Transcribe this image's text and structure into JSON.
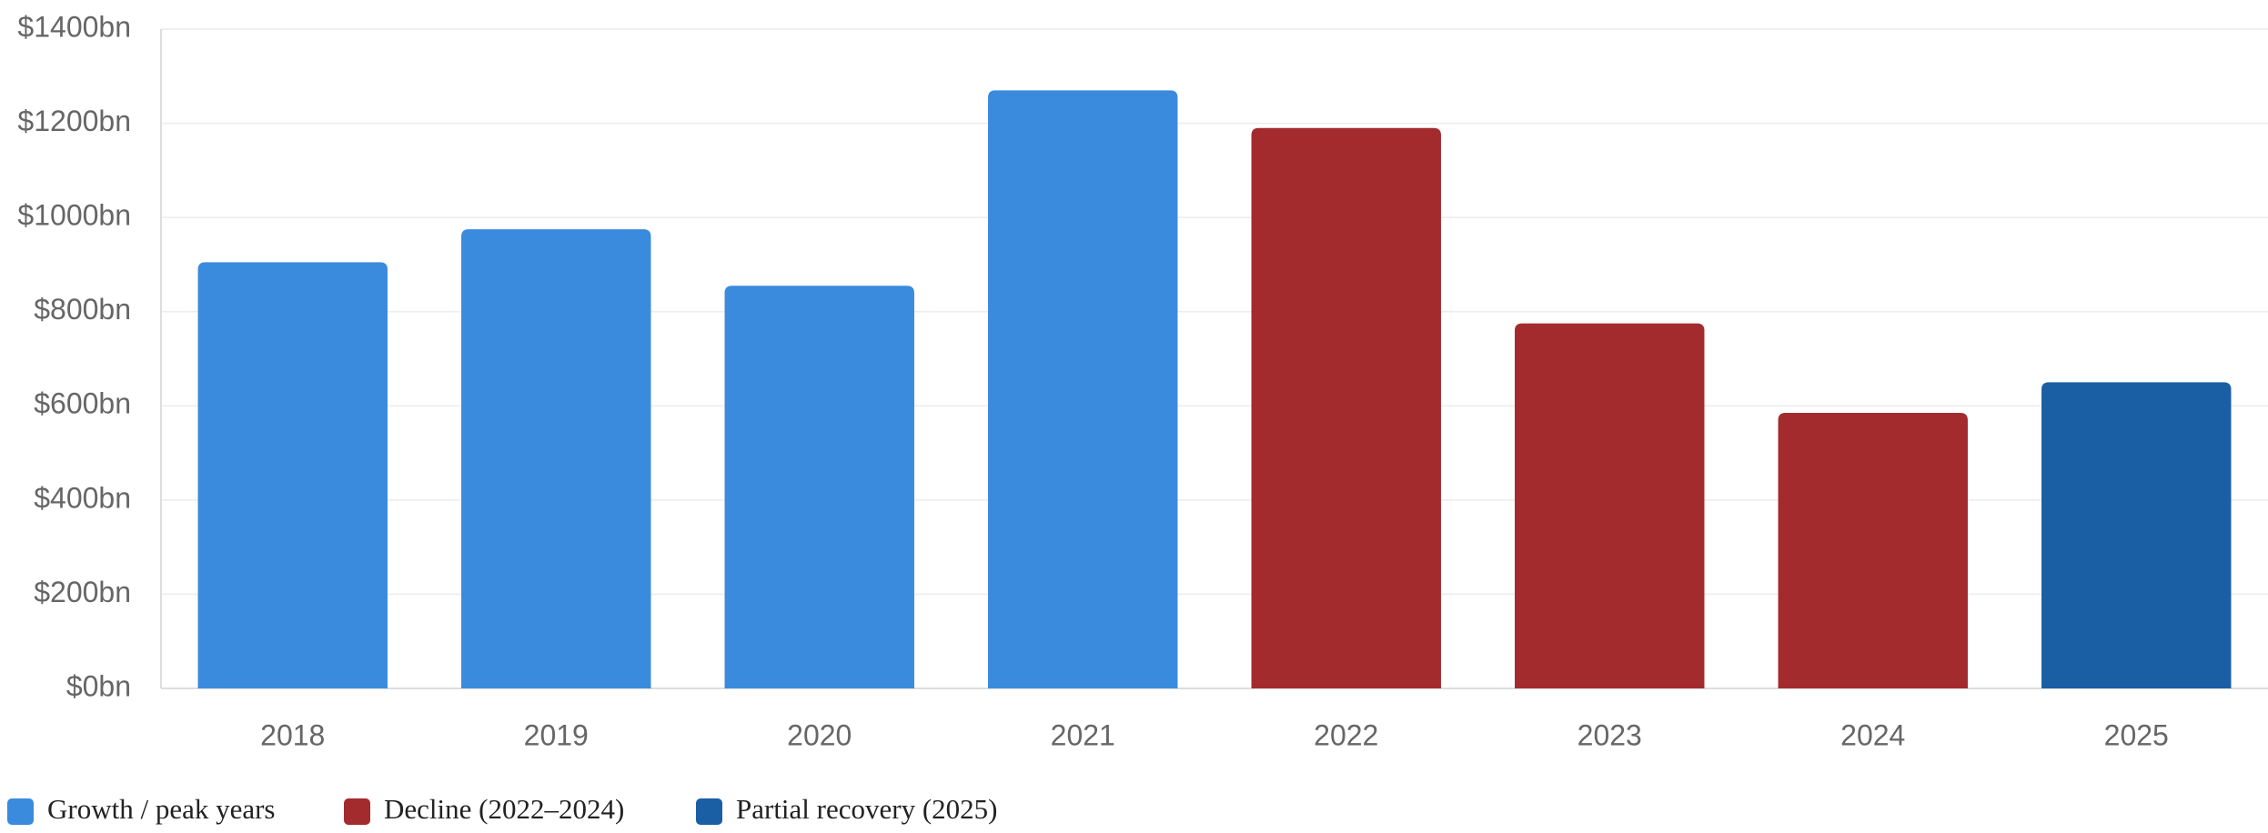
{
  "chart_data": {
    "type": "bar",
    "categories": [
      "2018",
      "2019",
      "2020",
      "2021",
      "2022",
      "2023",
      "2024",
      "2025"
    ],
    "series": [
      {
        "name": "Growth / peak years",
        "color": "#3a8bdd",
        "values": [
          905,
          975,
          855,
          1270,
          null,
          null,
          null,
          null
        ]
      },
      {
        "name": "Decline (2022–2024)",
        "color": "#a32b2e",
        "values": [
          null,
          null,
          null,
          null,
          1190,
          775,
          585,
          null
        ]
      },
      {
        "name": "Partial recovery (2025)",
        "color": "#1a5fa4",
        "values": [
          null,
          null,
          null,
          null,
          null,
          null,
          null,
          650
        ]
      }
    ],
    "ylim": [
      0,
      1400
    ],
    "yticks": [
      {
        "value": 0,
        "label": "$0bn"
      },
      {
        "value": 200,
        "label": "$200bn"
      },
      {
        "value": 400,
        "label": "$400bn"
      },
      {
        "value": 600,
        "label": "$600bn"
      },
      {
        "value": 800,
        "label": "$800bn"
      },
      {
        "value": 1000,
        "label": "$1000bn"
      },
      {
        "value": 1200,
        "label": "$1200bn"
      },
      {
        "value": 1400,
        "label": "$1400bn"
      }
    ],
    "grid": true,
    "legend": "bottom-left"
  }
}
